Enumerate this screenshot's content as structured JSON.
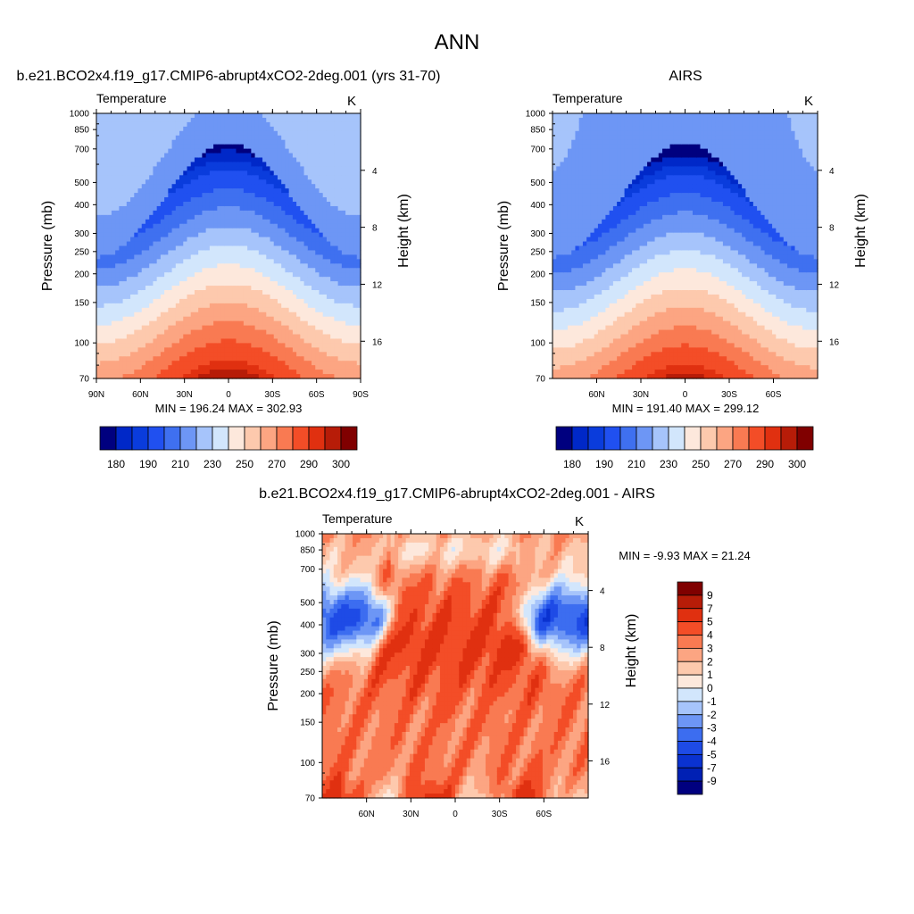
{
  "figure": {
    "title": "ANN"
  },
  "colors": {
    "main_scale": [
      "#00007f",
      "#0028c8",
      "#0a3cdc",
      "#2050f0",
      "#3f70f0",
      "#6d96f5",
      "#a6c4fb",
      "#d2e6fc",
      "#fde8dc",
      "#fdc9ad",
      "#fca582",
      "#f97a52",
      "#f34d27",
      "#e03010",
      "#b71c08",
      "#800000"
    ],
    "diff_scale": [
      "#00007f",
      "#0020b4",
      "#0a32d0",
      "#1e4be6",
      "#3c6df0",
      "#6d96f5",
      "#a6c4fb",
      "#d2e6fc",
      "#fde8dc",
      "#fdc9ad",
      "#fca582",
      "#f97a52",
      "#f34d27",
      "#e03010",
      "#b71c08",
      "#800000"
    ],
    "outline": "#000000"
  },
  "chart_data": [
    {
      "id": "model",
      "type": "heatmap",
      "title": "b.e21.BCO2x4.f19_g17.CMIP6-abrupt4xCO2-2deg.001 (yrs 31-70)",
      "left_string": "Temperature",
      "right_string": "K",
      "ylabel": "Pressure (mb)",
      "ylabel_right": "Height (km)",
      "x_ticks": [
        "90N",
        "60N",
        "30N",
        "0",
        "30S",
        "60S",
        "90S"
      ],
      "x_tick_values": [
        90,
        60,
        30,
        0,
        -30,
        -60,
        -90
      ],
      "xlim": [
        90,
        -90
      ],
      "y_ticks": [
        "70",
        "100",
        "150",
        "200",
        "250",
        "300",
        "400",
        "500",
        "700",
        "850",
        "1000"
      ],
      "y_tick_values": [
        70,
        100,
        150,
        200,
        250,
        300,
        400,
        500,
        700,
        850,
        1000
      ],
      "ylim": [
        1000,
        70
      ],
      "height_ticks": [
        "4",
        "8",
        "12",
        "16"
      ],
      "height_values": [
        4,
        8,
        12,
        16
      ],
      "stats": "MIN = 196.24  MAX = 302.93",
      "colorbar_labels": [
        "180",
        "190",
        "210",
        "230",
        "250",
        "270",
        "290",
        "300"
      ],
      "colorbar_levels": [
        180,
        185,
        190,
        200,
        210,
        220,
        230,
        240,
        250,
        260,
        270,
        280,
        290,
        295,
        300
      ],
      "colorbar_orientation": "horizontal",
      "missing_region": {
        "lat": [
          -55,
          -75
        ],
        "p": [
          900,
          1000
        ]
      }
    },
    {
      "id": "obs",
      "type": "heatmap",
      "title": "AIRS",
      "left_string": "Temperature",
      "right_string": "K",
      "ylabel": "Pressure (mb)",
      "ylabel_right": "Height (km)",
      "x_ticks": [
        "60N",
        "30N",
        "0",
        "30S",
        "60S"
      ],
      "x_tick_values": [
        60,
        30,
        0,
        -30,
        -60
      ],
      "xlim": [
        90,
        -90
      ],
      "y_ticks": [
        "70",
        "100",
        "150",
        "200",
        "250",
        "300",
        "400",
        "500",
        "700",
        "850",
        "1000"
      ],
      "y_tick_values": [
        70,
        100,
        150,
        200,
        250,
        300,
        400,
        500,
        700,
        850,
        1000
      ],
      "ylim": [
        1000,
        70
      ],
      "height_ticks": [
        "4",
        "8",
        "12",
        "16"
      ],
      "height_values": [
        4,
        8,
        12,
        16
      ],
      "stats": "MIN = 191.40  MAX = 299.12",
      "colorbar_labels": [
        "180",
        "190",
        "210",
        "230",
        "250",
        "270",
        "290",
        "300"
      ],
      "colorbar_levels": [
        180,
        185,
        190,
        200,
        210,
        220,
        230,
        240,
        250,
        260,
        270,
        280,
        290,
        295,
        300
      ],
      "colorbar_orientation": "horizontal"
    },
    {
      "id": "diff",
      "type": "heatmap",
      "title": "b.e21.BCO2x4.f19_g17.CMIP6-abrupt4xCO2-2deg.001 - AIRS",
      "left_string": "Temperature",
      "right_string": "K",
      "ylabel": "Pressure (mb)",
      "ylabel_right": "Height (km)",
      "x_ticks": [
        "60N",
        "30N",
        "0",
        "30S",
        "60S"
      ],
      "x_tick_values": [
        60,
        30,
        0,
        -30,
        -60
      ],
      "xlim": [
        90,
        -90
      ],
      "y_ticks": [
        "70",
        "100",
        "150",
        "200",
        "250",
        "300",
        "400",
        "500",
        "700",
        "850",
        "1000"
      ],
      "y_tick_values": [
        70,
        100,
        150,
        200,
        250,
        300,
        400,
        500,
        700,
        850,
        1000
      ],
      "ylim": [
        1000,
        70
      ],
      "height_ticks": [
        "4",
        "8",
        "12",
        "16"
      ],
      "height_values": [
        4,
        8,
        12,
        16
      ],
      "stats": "MIN =  -9.93  MAX =  21.24",
      "colorbar_labels": [
        "9",
        "7",
        "5",
        "4",
        "3",
        "2",
        "1",
        "0",
        "-1",
        "-2",
        "-3",
        "-4",
        "-5",
        "-7",
        "-9"
      ],
      "colorbar_levels": [
        9,
        7,
        5,
        4,
        3,
        2,
        1,
        0,
        -1,
        -2,
        -3,
        -4,
        -5,
        -7,
        -9
      ],
      "colorbar_orientation": "vertical",
      "missing_region": {
        "lat": [
          -45,
          -75
        ],
        "p": [
          940,
          1000
        ]
      }
    }
  ]
}
